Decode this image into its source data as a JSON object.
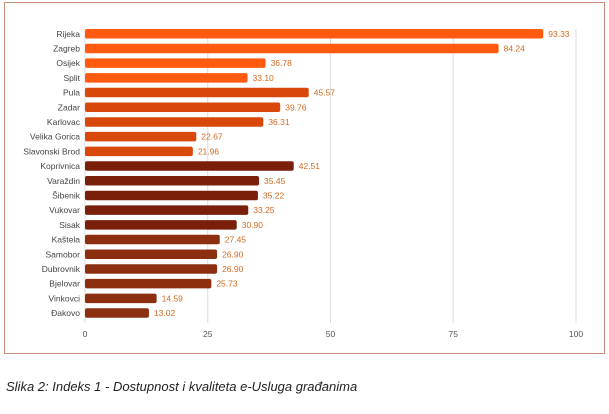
{
  "chart_data": {
    "type": "bar",
    "orientation": "horizontal",
    "title": "",
    "xlabel": "",
    "ylabel": "",
    "xlim": [
      0,
      100
    ],
    "xticks": [
      0,
      25,
      50,
      75,
      100
    ],
    "grid": true,
    "categories": [
      "Rijeka",
      "Zagreb",
      "Osijek",
      "Split",
      "Pula",
      "Zadar",
      "Karlovac",
      "Velika Gorica",
      "Slavonski Brod",
      "Koprivnica",
      "Varaždin",
      "Šibenik",
      "Vukovar",
      "Sisak",
      "Kaštela",
      "Samobor",
      "Dubrovnik",
      "Bjelovar",
      "Vinkovci",
      "Đakovo"
    ],
    "values": [
      93.33,
      84.24,
      36.78,
      33.1,
      45.57,
      39.76,
      36.31,
      22.67,
      21.96,
      42.51,
      35.45,
      35.22,
      33.25,
      30.9,
      27.45,
      26.9,
      26.9,
      25.73,
      14.59,
      13.02
    ],
    "value_labels": [
      "93.33",
      "84.24",
      "36.78",
      "33.10",
      "45.57",
      "39.76",
      "36.31",
      "22.67",
      "21.96",
      "42.51",
      "35.45",
      "35.22",
      "33.25",
      "30.90",
      "27.45",
      "26.90",
      "26.90",
      "25.73",
      "14.59",
      "13.02"
    ],
    "bar_colors": [
      "#ff5a0f",
      "#ff5a0f",
      "#ff5a0f",
      "#ff5a0f",
      "#d9480b",
      "#d9480b",
      "#d9480b",
      "#d9480b",
      "#d9480b",
      "#7a1f0a",
      "#7a1f0a",
      "#7a1f0a",
      "#7a1f0a",
      "#7a1f0a",
      "#8b2f10",
      "#8b2f10",
      "#8b2f10",
      "#8b2f10",
      "#8b2f10",
      "#8b2f10"
    ],
    "value_label_color": "#d2691e",
    "gridline_color": "#dddddd"
  },
  "caption": "Slika 2: Indeks 1 - Dostupnost i kvaliteta e-Usluga građanima"
}
